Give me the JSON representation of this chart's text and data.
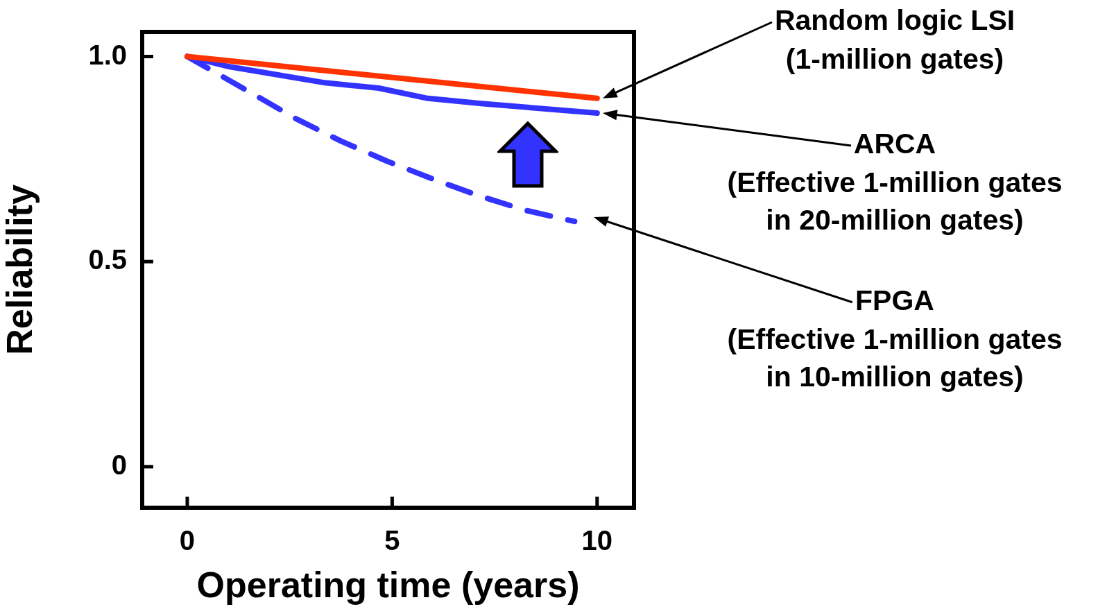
{
  "chart_data": {
    "type": "line",
    "xlabel": "Operating time (years)",
    "ylabel": "Reliability",
    "xlim": [
      -1.1,
      10.9
    ],
    "xticks": [
      0,
      5,
      10
    ],
    "ylim": [
      -0.1,
      1.06
    ],
    "yticks": [
      0,
      0.5,
      {
        "value": 1,
        "label": "1.0"
      }
    ],
    "grid": false,
    "legend": false,
    "marker": "none",
    "series": [
      {
        "name": "Random logic LSI",
        "color": "#ff3300",
        "line_style": "solid",
        "x": [
          0,
          10
        ],
        "values": [
          1,
          0.898
        ]
      },
      {
        "name": "ARCA",
        "color": "#3333ff",
        "line_style": "solid",
        "x": [
          0,
          1.04,
          3.36,
          4.67,
          5.87,
          7.22,
          10
        ],
        "values": [
          1,
          0.975,
          0.936,
          0.923,
          0.898,
          0.885,
          0.862
        ]
      },
      {
        "name": "FPGA",
        "color": "#3333ff",
        "line_style": "dashed",
        "x": [
          0,
          1.62,
          2.66,
          3.75,
          4.87,
          5.98,
          7.1,
          8.26,
          9.45
        ],
        "values": [
          1,
          0.908,
          0.848,
          0.794,
          0.745,
          0.702,
          0.661,
          0.625,
          0.598
        ]
      }
    ],
    "annotations": [
      "(1-million gates)",
      "(Effective 1-million gates in 20-million gates)",
      "(Effective 1-million gates in 10-million gates)"
    ]
  }
}
